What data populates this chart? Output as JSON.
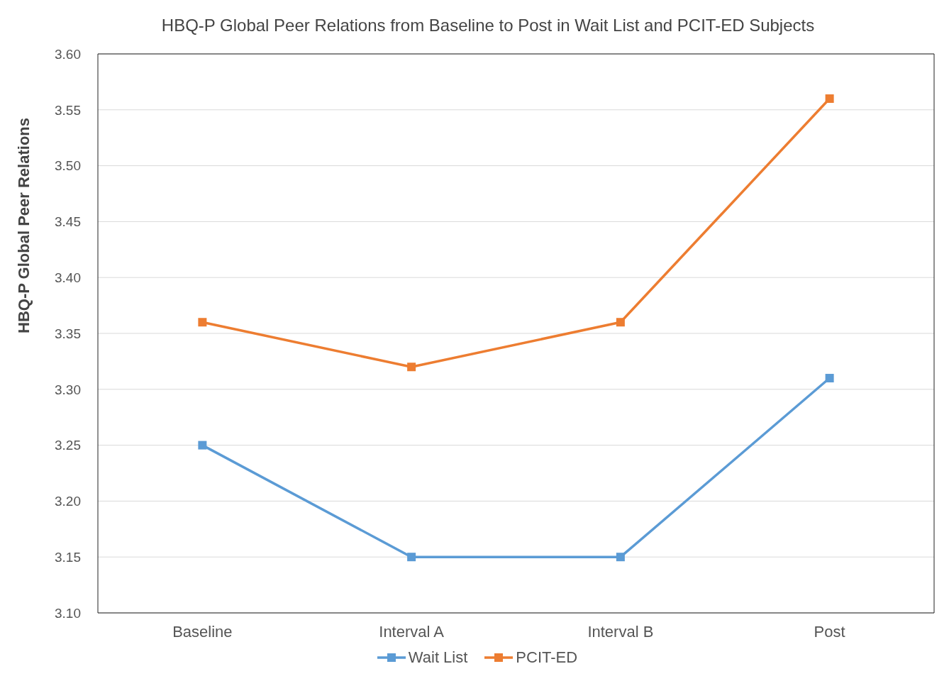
{
  "chart_data": {
    "type": "line",
    "title": "HBQ-P Global Peer Relations from Baseline to Post in Wait List and PCIT-ED Subjects",
    "ylabel": "HBQ-P Global Peer Relations",
    "categories": [
      "Baseline",
      "Interval A",
      "Interval B",
      "Post"
    ],
    "series": [
      {
        "name": "Wait List",
        "color": "#5b9bd5",
        "values": [
          3.25,
          3.15,
          3.15,
          3.31
        ]
      },
      {
        "name": "PCIT-ED",
        "color": "#ed7d31",
        "values": [
          3.36,
          3.32,
          3.36,
          3.56
        ]
      }
    ],
    "ylim": [
      3.1,
      3.6
    ],
    "yticks": [
      {
        "value": 3.1,
        "label": "3.10"
      },
      {
        "value": 3.15,
        "label": "3.15"
      },
      {
        "value": 3.2,
        "label": "3.20"
      },
      {
        "value": 3.25,
        "label": "3.25"
      },
      {
        "value": 3.3,
        "label": "3.30"
      },
      {
        "value": 3.35,
        "label": "3.35"
      },
      {
        "value": 3.4,
        "label": "3.40"
      },
      {
        "value": 3.45,
        "label": "3.45"
      },
      {
        "value": 3.5,
        "label": "3.50"
      },
      {
        "value": 3.55,
        "label": "3.55"
      },
      {
        "value": 3.6,
        "label": "3.60"
      }
    ],
    "grid": "y",
    "legend": "bottom",
    "marker": "square",
    "line_style": "solid"
  }
}
